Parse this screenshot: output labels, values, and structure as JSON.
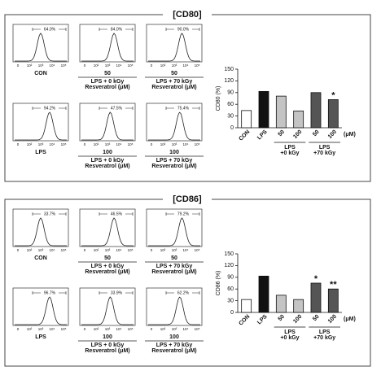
{
  "hist_ticks": [
    "0",
    "10²",
    "10³",
    "10⁴",
    "10⁵"
  ],
  "panels": [
    {
      "title": "[CD80]",
      "histograms": [
        {
          "percent": "64.0%",
          "caption": [
            "CON"
          ]
        },
        {
          "percent": "84.0%",
          "caption": [
            "50",
            "LPS + 0 kGy",
            "Resveratrol (μM)"
          ]
        },
        {
          "percent": "90.0%",
          "caption": [
            "50",
            "LPS + 70 kGy",
            "Resveratrol (μM)"
          ]
        },
        {
          "percent": "94.2%",
          "caption": [
            "LPS"
          ]
        },
        {
          "percent": "47.5%",
          "caption": [
            "100",
            "LPS + 0 kGy",
            "Resveratrol (μM)"
          ]
        },
        {
          "percent": "75.4%",
          "caption": [
            "100",
            "LPS + 70 kGy",
            "Resveratrol (μM)"
          ]
        }
      ],
      "chart": {
        "type": "bar",
        "y_label": "CD80 (%)",
        "categories": [
          "CON",
          "LPS",
          "50",
          "100",
          "50",
          "100"
        ],
        "unit": "(μM)",
        "values": [
          44,
          93,
          81,
          43,
          90,
          72
        ],
        "colors": [
          "#ffffff",
          "#111111",
          "#c4c4c4",
          "#c4c4c4",
          "#555555",
          "#555555"
        ],
        "significance": [
          null,
          null,
          null,
          null,
          null,
          "*"
        ],
        "groups": [
          [
            "LPS",
            "+0 kGy"
          ],
          [
            "LPS",
            "+70 kGy"
          ]
        ],
        "ylim": [
          0,
          150
        ],
        "yticks": [
          0,
          30,
          60,
          90,
          120,
          150
        ]
      }
    },
    {
      "title": "[CD86]",
      "histograms": [
        {
          "percent": "33.7%",
          "caption": [
            "CON"
          ]
        },
        {
          "percent": "46.5%",
          "caption": [
            "50",
            "LPS + 0 kGy",
            "Resveratrol (μM)"
          ]
        },
        {
          "percent": "79.2%",
          "caption": [
            "50",
            "LPS + 70 kGy",
            "Resveratrol (μM)"
          ]
        },
        {
          "percent": "96.7%",
          "caption": [
            "LPS"
          ]
        },
        {
          "percent": "33.9%",
          "caption": [
            "100",
            "LPS + 0 kGy",
            "Resveratrol (μM)"
          ]
        },
        {
          "percent": "62.2%",
          "caption": [
            "100",
            "LPS + 70 kGy",
            "Resveratrol (μM)"
          ]
        }
      ],
      "chart": {
        "type": "bar",
        "y_label": "CD86 (%)",
        "categories": [
          "CON",
          "LPS",
          "50",
          "100",
          "50",
          "100"
        ],
        "unit": "(μM)",
        "values": [
          33,
          93,
          44,
          33,
          75,
          60
        ],
        "colors": [
          "#ffffff",
          "#111111",
          "#c4c4c4",
          "#c4c4c4",
          "#555555",
          "#555555"
        ],
        "significance": [
          null,
          null,
          null,
          null,
          "*",
          "**"
        ],
        "groups": [
          [
            "LPS",
            "+0 kGy"
          ],
          [
            "LPS",
            "+70 kGy"
          ]
        ],
        "ylim": [
          0,
          150
        ],
        "yticks": [
          0,
          30,
          60,
          90,
          120,
          150
        ]
      }
    }
  ]
}
